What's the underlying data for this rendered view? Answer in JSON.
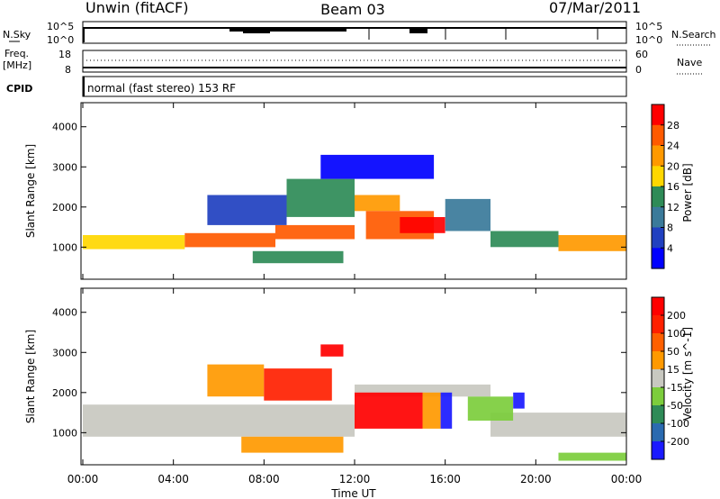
{
  "header": {
    "station": "Unwin (fitACF)",
    "beam": "Beam 03",
    "date": "07/Mar/2011"
  },
  "top_panels": {
    "nsky_label": "N.Sky",
    "nsearch_label": "N.Search",
    "ticks_left": [
      "10^5",
      "10^0"
    ],
    "ticks_right": [
      "10^5",
      "10^0"
    ],
    "freq_label_line1": "Freq.",
    "freq_label_line2": "[MHz]",
    "freq_ticks": [
      "18",
      "8"
    ],
    "nave_label": "Nave",
    "nave_ticks": [
      "60",
      "0"
    ],
    "cpid_label": "CPID",
    "cpid_text": "normal (fast stereo) 153 RF"
  },
  "chart_data": [
    {
      "type": "heatmap",
      "panel": "power",
      "ylabel": "Slant Range [km]",
      "xlabel": "Time UT",
      "ylim": [
        200,
        4600
      ],
      "yticks": [
        "1000",
        "2000",
        "3000",
        "4000"
      ],
      "x_ticks": [
        "00:00",
        "04:00",
        "08:00",
        "12:00",
        "16:00",
        "20:00",
        "00:00"
      ],
      "colorbar_label": "Power [dB]",
      "colorbar_ticks": [
        "4",
        "8",
        "12",
        "16",
        "20",
        "24",
        "28"
      ],
      "colors": [
        "#0000ff",
        "#2040c0",
        "#3a7a9a",
        "#2e8b57",
        "#ffd700",
        "#ff9900",
        "#ff5a00",
        "#ff0000"
      ],
      "bands": [
        {
          "t0": 0.0,
          "t1": 4.5,
          "r0": 950,
          "r1": 1300,
          "level": 4
        },
        {
          "t0": 4.5,
          "t1": 8.5,
          "r0": 1000,
          "r1": 1350,
          "level": 6
        },
        {
          "t0": 8.5,
          "t1": 12.0,
          "r0": 1200,
          "r1": 1550,
          "level": 6
        },
        {
          "t0": 5.5,
          "t1": 9.0,
          "r0": 1550,
          "r1": 2300,
          "level": 1
        },
        {
          "t0": 9.0,
          "t1": 12.0,
          "r0": 1750,
          "r1": 2700,
          "level": 3
        },
        {
          "t0": 12.0,
          "t1": 14.0,
          "r0": 1900,
          "r1": 2300,
          "level": 5
        },
        {
          "t0": 12.5,
          "t1": 15.5,
          "r0": 1200,
          "r1": 1900,
          "level": 6
        },
        {
          "t0": 14.0,
          "t1": 16.0,
          "r0": 1350,
          "r1": 1750,
          "level": 7
        },
        {
          "t0": 7.5,
          "t1": 11.5,
          "r0": 600,
          "r1": 900,
          "level": 3
        },
        {
          "t0": 16.0,
          "t1": 18.0,
          "r0": 1400,
          "r1": 2200,
          "level": 2
        },
        {
          "t0": 18.0,
          "t1": 21.0,
          "r0": 1000,
          "r1": 1400,
          "level": 3
        },
        {
          "t0": 21.0,
          "t1": 24.0,
          "r0": 900,
          "r1": 1300,
          "level": 5
        },
        {
          "t0": 10.5,
          "t1": 15.5,
          "r0": 2700,
          "r1": 3300,
          "level": 0
        }
      ]
    },
    {
      "type": "heatmap",
      "panel": "velocity",
      "ylabel": "Slant Range [km]",
      "xlabel": "Time UT",
      "ylim": [
        200,
        4600
      ],
      "yticks": [
        "1000",
        "2000",
        "3000",
        "4000"
      ],
      "x_ticks": [
        "00:00",
        "04:00",
        "08:00",
        "12:00",
        "16:00",
        "20:00",
        "00:00"
      ],
      "colorbar_label": "Velocity [m s^-1]",
      "colorbar_ticks": [
        "200",
        "100",
        "50",
        "15",
        "-15",
        "-50",
        "-100",
        "-200"
      ],
      "colors": [
        "#1a1aff",
        "#2a6ab0",
        "#2e8b57",
        "#7ccd3c",
        "#c8c8c0",
        "#ff9900",
        "#ff6000",
        "#ff2000",
        "#ff0000"
      ],
      "bands": [
        {
          "t0": 0.0,
          "t1": 12.0,
          "r0": 900,
          "r1": 1700,
          "level": 4
        },
        {
          "t0": 12.0,
          "t1": 18.0,
          "r0": 1900,
          "r1": 2200,
          "level": 4
        },
        {
          "t0": 18.0,
          "t1": 24.0,
          "r0": 900,
          "r1": 1500,
          "level": 4
        },
        {
          "t0": 5.5,
          "t1": 8.0,
          "r0": 1900,
          "r1": 2700,
          "level": 5
        },
        {
          "t0": 8.0,
          "t1": 11.0,
          "r0": 1800,
          "r1": 2600,
          "level": 7
        },
        {
          "t0": 12.0,
          "t1": 15.0,
          "r0": 1100,
          "r1": 2000,
          "level": 8
        },
        {
          "t0": 15.0,
          "t1": 15.8,
          "r0": 1100,
          "r1": 2000,
          "level": 5
        },
        {
          "t0": 15.8,
          "t1": 16.3,
          "r0": 1100,
          "r1": 2000,
          "level": 0
        },
        {
          "t0": 7.0,
          "t1": 11.5,
          "r0": 500,
          "r1": 900,
          "level": 5
        },
        {
          "t0": 10.5,
          "t1": 11.5,
          "r0": 2900,
          "r1": 3200,
          "level": 8
        },
        {
          "t0": 17.0,
          "t1": 19.0,
          "r0": 1300,
          "r1": 1900,
          "level": 3
        },
        {
          "t0": 19.0,
          "t1": 19.5,
          "r0": 1600,
          "r1": 2000,
          "level": 0
        },
        {
          "t0": 21.0,
          "t1": 24.0,
          "r0": 300,
          "r1": 500,
          "level": 3
        }
      ]
    }
  ]
}
